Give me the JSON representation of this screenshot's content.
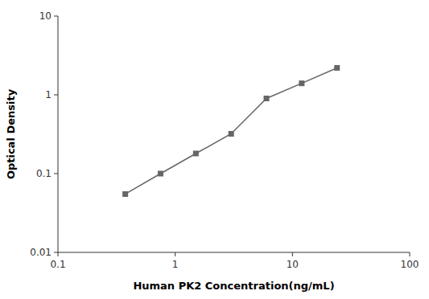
{
  "chart_data": {
    "type": "line",
    "xlabel": "Human PK2 Concentration(ng/mL)",
    "ylabel": "Optical Density",
    "x": [
      0.375,
      0.75,
      1.5,
      3,
      6,
      12,
      24
    ],
    "values": [
      0.055,
      0.1,
      0.18,
      0.32,
      0.9,
      1.4,
      2.2
    ],
    "color": "#666666",
    "marker": "square",
    "log": true,
    "grid": false,
    "xlim": [
      0.1,
      100
    ],
    "ylim": [
      0.01,
      10
    ],
    "xticks": [
      0.1,
      1,
      10,
      100
    ],
    "yticks": [
      0.01,
      0.1,
      1,
      10
    ]
  }
}
